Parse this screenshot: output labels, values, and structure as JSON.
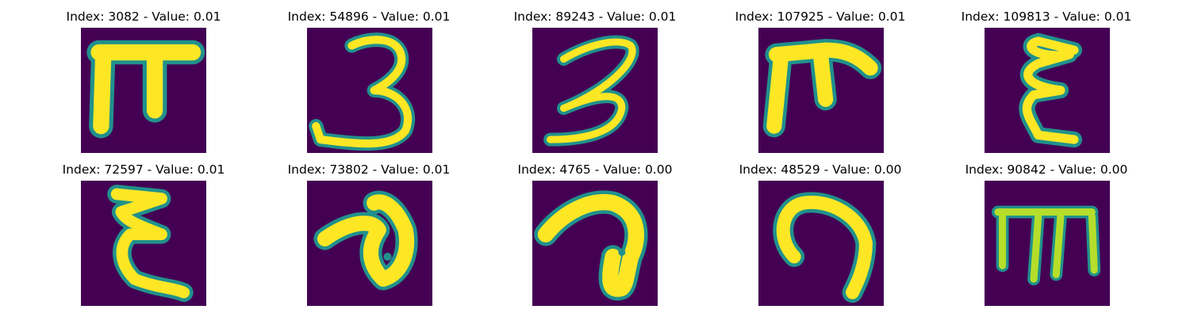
{
  "colors": {
    "background": "#440154",
    "glyph_core": "#fde725",
    "glyph_mid": "#b5de2b",
    "glyph_edge": "#21918c",
    "glyph_halo": "#3b528b"
  },
  "panels": [
    {
      "title": "Index: 3082 - Value: 0.01",
      "glyph": "pi"
    },
    {
      "title": "Index: 54896 - Value: 0.01",
      "glyph": "three-a"
    },
    {
      "title": "Index: 89243 - Value: 0.01",
      "glyph": "three-b"
    },
    {
      "title": "Index: 107925 - Value: 0.01",
      "glyph": "pi-hook"
    },
    {
      "title": "Index: 109813 - Value: 0.01",
      "glyph": "epsilon-a"
    },
    {
      "title": "Index: 72597 - Value: 0.01",
      "glyph": "epsilon-b"
    },
    {
      "title": "Index: 73802 - Value: 0.01",
      "glyph": "loop-a"
    },
    {
      "title": "Index: 4765 - Value: 0.00",
      "glyph": "loop-b"
    },
    {
      "title": "Index: 48529 - Value: 0.00",
      "glyph": "hook"
    },
    {
      "title": "Index: 90842 - Value: 0.00",
      "glyph": "m-shape"
    }
  ]
}
